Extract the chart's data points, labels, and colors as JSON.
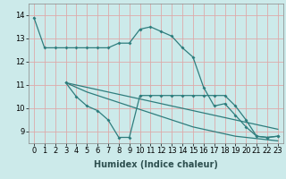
{
  "xlabel": "Humidex (Indice chaleur)",
  "background_color": "#cceaea",
  "grid_color": "#ddaaaa",
  "line_color": "#2e7d7d",
  "xlim": [
    -0.5,
    23.5
  ],
  "ylim": [
    8.5,
    14.5
  ],
  "yticks": [
    9,
    10,
    11,
    12,
    13,
    14
  ],
  "xticks": [
    0,
    1,
    2,
    3,
    4,
    5,
    6,
    7,
    8,
    9,
    10,
    11,
    12,
    13,
    14,
    15,
    16,
    17,
    18,
    19,
    20,
    21,
    22,
    23
  ],
  "line1_x": [
    0,
    1,
    2,
    3,
    4,
    5,
    6,
    7,
    8,
    9,
    10,
    11,
    12,
    13,
    14,
    15,
    16,
    17,
    18,
    19,
    20,
    21,
    22,
    23
  ],
  "line1_y": [
    13.9,
    12.6,
    12.6,
    12.6,
    12.6,
    12.6,
    12.6,
    12.6,
    12.8,
    12.8,
    13.4,
    13.5,
    13.3,
    13.1,
    12.6,
    12.2,
    10.9,
    10.1,
    10.2,
    9.7,
    9.2,
    8.8,
    8.75,
    8.8
  ],
  "line2_x": [
    3,
    4,
    5,
    6,
    7,
    8,
    9,
    10,
    11,
    12,
    13,
    14,
    15,
    16,
    17,
    18,
    19,
    20,
    21,
    22,
    23
  ],
  "line2_y": [
    11.1,
    10.5,
    10.1,
    9.9,
    9.5,
    8.75,
    8.75,
    10.55,
    10.55,
    10.55,
    10.55,
    10.55,
    10.55,
    10.55,
    10.55,
    10.55,
    10.1,
    9.5,
    8.8,
    8.75,
    8.8
  ],
  "line3_x": [
    3,
    23
  ],
  "line3_y": [
    11.1,
    9.1
  ],
  "line4_x": [
    3,
    4,
    5,
    6,
    7,
    8,
    9,
    10,
    11,
    12,
    13,
    14,
    15,
    16,
    17,
    18,
    19,
    20,
    21,
    22,
    23
  ],
  "line4_y": [
    11.1,
    10.9,
    10.7,
    10.55,
    10.4,
    10.25,
    10.1,
    9.95,
    9.8,
    9.65,
    9.5,
    9.35,
    9.2,
    9.1,
    9.0,
    8.9,
    8.8,
    8.75,
    8.7,
    8.65,
    8.6
  ],
  "fontsize_tick": 6,
  "fontsize_label": 7
}
